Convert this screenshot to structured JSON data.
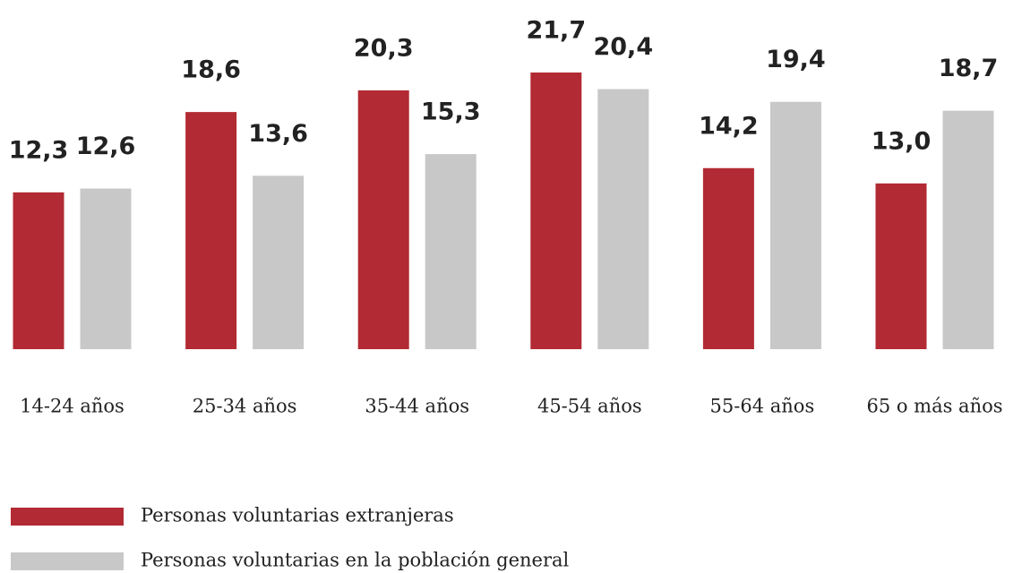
{
  "chart_data": {
    "type": "bar",
    "categories": [
      "14-24 años",
      "25-34 años",
      "35-44 años",
      "45-54 años",
      "55-64 años",
      "65 o más años"
    ],
    "series": [
      {
        "name": "Personas voluntarias extranjeras",
        "color": "#b22a33",
        "values": [
          12.3,
          18.6,
          20.3,
          21.7,
          14.2,
          13.0
        ],
        "value_labels": [
          "12,3",
          "18,6",
          "20,3",
          "21,7",
          "14,2",
          "13,0"
        ]
      },
      {
        "name": "Personas voluntarias en la población general",
        "color": "#c8c8c8",
        "values": [
          12.6,
          13.6,
          15.3,
          20.4,
          19.4,
          18.7
        ],
        "value_labels": [
          "12,6",
          "13,6",
          "15,3",
          "20,4",
          "19,4",
          "18,7"
        ]
      }
    ],
    "ylim": [
      0,
      25
    ]
  }
}
